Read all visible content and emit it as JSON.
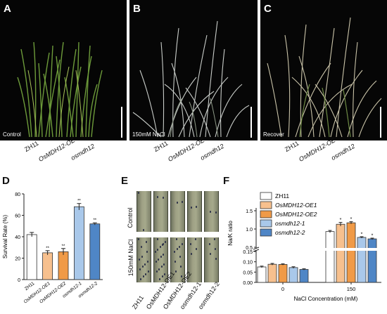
{
  "panels": {
    "A": {
      "letter": "A",
      "caption": "Control"
    },
    "B": {
      "letter": "B",
      "caption": "150mM NaCl"
    },
    "C": {
      "letter": "C",
      "caption": "Recover"
    },
    "D": {
      "letter": "D"
    },
    "E": {
      "letter": "E",
      "row1": "Control",
      "row2": "150mM NaCl"
    },
    "F": {
      "letter": "F"
    }
  },
  "genotypes_top": [
    "ZH11",
    "OsMDH12-OE",
    "osmdh12"
  ],
  "genotypes_e": [
    "ZH11",
    "OsMDH12-OE1",
    "OsMDH12-OE2",
    "osmdh12-1",
    "osmdh12-2"
  ],
  "colors": {
    "zh11": "#ffffff",
    "oe1": "#f7c08e",
    "oe2": "#f09a47",
    "mdh1": "#a9c8ea",
    "mdh2": "#4f86c6"
  },
  "chart_data": [
    {
      "type": "bar",
      "panel": "D",
      "ylabel": "Survival Rate (%)",
      "yticks": [
        "0",
        "20",
        "40",
        "60",
        "80"
      ],
      "ylim": [
        0,
        80
      ],
      "categories": [
        "ZH11",
        "OsMDH12-OE1",
        "OsMDH12-OE2",
        "osmdh12-1",
        "osmdh12-2"
      ],
      "values": [
        42,
        25,
        26,
        68,
        52
      ],
      "errors": [
        2,
        2,
        3,
        3,
        1
      ],
      "significance": [
        "",
        "**",
        "**",
        "**",
        "**"
      ]
    },
    {
      "type": "bar",
      "panel": "F",
      "ylabel": "Na/K ratio",
      "xlabel": "NaCl Concentration (mM)",
      "groups": [
        "0",
        "150"
      ],
      "yticks_upper": [
        "0.5",
        "1.0",
        "1.5"
      ],
      "yticks_lower": [
        "0.00",
        "0.05",
        "0.10",
        "0.15"
      ],
      "series": [
        {
          "name": "ZH11",
          "values": [
            0.075,
            0.93
          ],
          "errors": [
            0.004,
            0.03
          ],
          "significance": [
            "",
            ""
          ]
        },
        {
          "name": "OsMDH12-OE1",
          "values": [
            0.088,
            1.13
          ],
          "errors": [
            0.004,
            0.05
          ],
          "significance": [
            "",
            "*"
          ]
        },
        {
          "name": "OsMDH12-OE2",
          "values": [
            0.087,
            1.17
          ],
          "errors": [
            0.003,
            0.03
          ],
          "significance": [
            "",
            "*"
          ]
        },
        {
          "name": "osmdh12-1",
          "values": [
            0.072,
            0.77
          ],
          "errors": [
            0.004,
            0.02
          ],
          "significance": [
            "",
            "*"
          ]
        },
        {
          "name": "osmdh12-2",
          "values": [
            0.063,
            0.73
          ],
          "errors": [
            0.003,
            0.02
          ],
          "significance": [
            "",
            "*"
          ]
        }
      ]
    }
  ]
}
